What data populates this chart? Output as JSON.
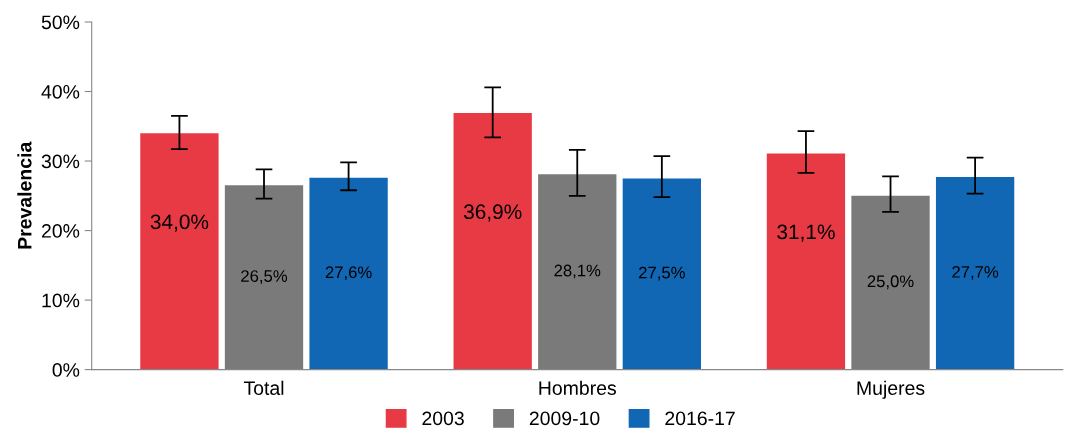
{
  "chart_data": {
    "type": "bar",
    "ylabel": "Prevalencia",
    "categories": [
      "Total",
      "Hombres",
      "Mujeres"
    ],
    "series": [
      {
        "name": "2003",
        "color": "#e83a45",
        "values": [
          34.0,
          36.9,
          31.1
        ],
        "value_labels": [
          "34,0%",
          "36,9%",
          "31,1%"
        ],
        "errors": [
          [
            31.7,
            36.5
          ],
          [
            33.4,
            40.6
          ],
          [
            28.3,
            34.3
          ]
        ]
      },
      {
        "name": "2009-10",
        "color": "#7a7a7a",
        "values": [
          26.5,
          28.1,
          25.0
        ],
        "value_labels": [
          "26,5%",
          "28,1%",
          "25,0%"
        ],
        "errors": [
          [
            24.6,
            28.8
          ],
          [
            25.0,
            31.6
          ],
          [
            22.7,
            27.8
          ]
        ]
      },
      {
        "name": "2016-17",
        "color": "#1167b4",
        "values": [
          27.6,
          27.5,
          27.7
        ],
        "value_labels": [
          "27,6%",
          "27,5%",
          "27,7%"
        ],
        "errors": [
          [
            25.8,
            29.8
          ],
          [
            24.8,
            30.7
          ],
          [
            25.3,
            30.5
          ]
        ]
      }
    ],
    "ylim": [
      0,
      50
    ],
    "yticks": [
      {
        "value": 0,
        "label": "0%"
      },
      {
        "value": 10,
        "label": "10%"
      },
      {
        "value": 20,
        "label": "20%"
      },
      {
        "value": 30,
        "label": "30%"
      },
      {
        "value": 40,
        "label": "40%"
      },
      {
        "value": 50,
        "label": "50%"
      }
    ],
    "grid": false,
    "legend": "bottom"
  }
}
